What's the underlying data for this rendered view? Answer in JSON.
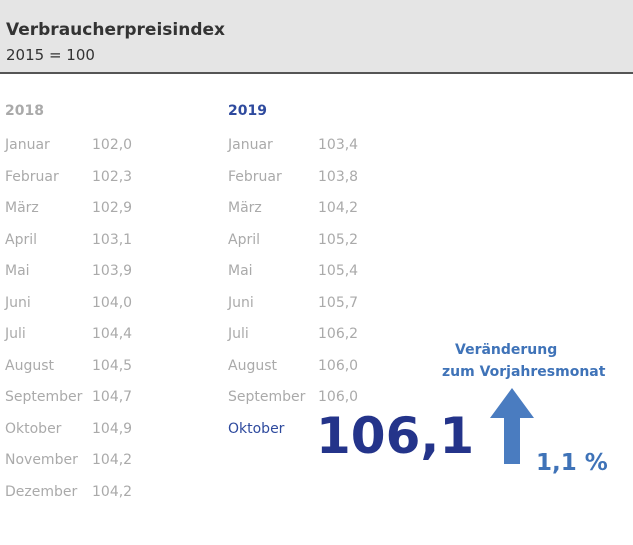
{
  "header": {
    "title": "Verbraucherpreisindex",
    "subtitle": "2015 = 100"
  },
  "y2018": {
    "year": "2018",
    "rows": [
      {
        "month": "Januar",
        "value": "102,0"
      },
      {
        "month": "Februar",
        "value": "102,3"
      },
      {
        "month": "März",
        "value": "102,9"
      },
      {
        "month": "April",
        "value": "103,1"
      },
      {
        "month": "Mai",
        "value": "103,9"
      },
      {
        "month": "Juni",
        "value": "104,0"
      },
      {
        "month": "Juli",
        "value": "104,4"
      },
      {
        "month": "August",
        "value": "104,5"
      },
      {
        "month": "September",
        "value": "104,7"
      },
      {
        "month": "Oktober",
        "value": "104,9"
      },
      {
        "month": "November",
        "value": "104,2"
      },
      {
        "month": "Dezember",
        "value": "104,2"
      }
    ]
  },
  "y2019": {
    "year": "2019",
    "rows": [
      {
        "month": "Januar",
        "value": "103,4"
      },
      {
        "month": "Februar",
        "value": "103,8"
      },
      {
        "month": "März",
        "value": "104,2"
      },
      {
        "month": "April",
        "value": "105,2"
      },
      {
        "month": "Mai",
        "value": "105,4"
      },
      {
        "month": "Juni",
        "value": "105,7"
      },
      {
        "month": "Juli",
        "value": "106,2"
      },
      {
        "month": "August",
        "value": "106,0"
      },
      {
        "month": "September",
        "value": "106,0"
      }
    ],
    "current": {
      "month": "Oktober",
      "value": "106,1"
    }
  },
  "change": {
    "label": [
      "Veränderung",
      "zum Vorjahresmonat"
    ],
    "value": "1,1 %"
  }
}
